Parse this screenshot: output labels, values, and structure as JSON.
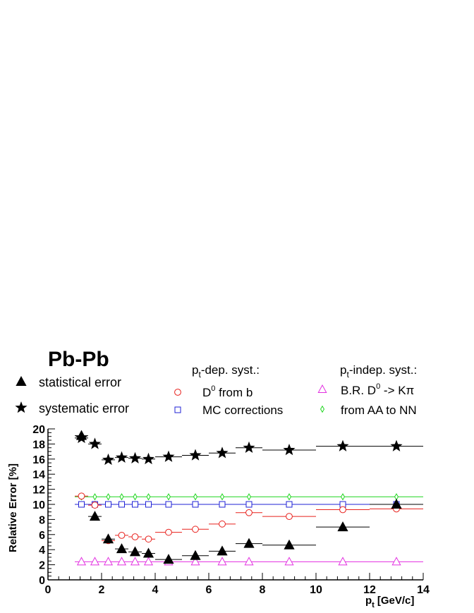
{
  "chart_data": {
    "type": "scatter",
    "title": "Pb-Pb",
    "xlabel": "p",
    "xlabel_sub": "t",
    "xlabel_unit": "[GeV/c]",
    "ylabel": "Relative Error [%]",
    "xlim": [
      0,
      14
    ],
    "ylim": [
      0,
      20
    ],
    "x_ticks": [
      "0",
      "2",
      "4",
      "6",
      "8",
      "10",
      "12",
      "14"
    ],
    "y_ticks": [
      "0",
      "2",
      "4",
      "6",
      "8",
      "10",
      "12",
      "14",
      "16",
      "18",
      "20"
    ],
    "grid": false,
    "legend_groups": {
      "dep_title": "p",
      "dep_title_sub": "t",
      "dep_title_rest": "-dep. syst.:",
      "indep_title": "p",
      "indep_title_sub": "t",
      "indep_title_rest": "-indep. syst.:"
    },
    "series": [
      {
        "name": "statistical error",
        "marker": "triangle-filled",
        "color": "#000000",
        "x": [
          1.25,
          1.75,
          2.25,
          2.75,
          3.25,
          3.75,
          4.5,
          5.5,
          6.5,
          7.5,
          9,
          11,
          13
        ],
        "xw": [
          0.25,
          0.25,
          0.25,
          0.25,
          0.25,
          0.25,
          0.5,
          0.5,
          0.5,
          0.5,
          1,
          1,
          1
        ],
        "y": [
          19.1,
          8.4,
          5.4,
          4.1,
          3.7,
          3.5,
          2.7,
          3.2,
          3.8,
          4.8,
          4.6,
          7.0,
          10.0
        ]
      },
      {
        "name": "systematic error",
        "marker": "star",
        "color": "#000000",
        "x": [
          1.25,
          1.75,
          2.25,
          2.75,
          3.25,
          3.75,
          4.5,
          5.5,
          6.5,
          7.5,
          9,
          11,
          13
        ],
        "xw": [
          0.25,
          0.25,
          0.25,
          0.25,
          0.25,
          0.25,
          0.5,
          0.5,
          0.5,
          0.5,
          1,
          1,
          1
        ],
        "y": [
          18.8,
          18.0,
          15.9,
          16.2,
          16.1,
          16.0,
          16.3,
          16.5,
          16.8,
          17.5,
          17.2,
          17.7,
          17.7
        ]
      },
      {
        "name": "D",
        "name_sup": "0",
        "name_rest": " from b",
        "group": "dep",
        "marker": "circle-open",
        "color": "#e8201c",
        "x": [
          1.25,
          1.75,
          2.25,
          2.75,
          3.25,
          3.75,
          4.5,
          5.5,
          6.5,
          7.5,
          9,
          11,
          13
        ],
        "xw": [
          0.25,
          0.25,
          0.25,
          0.25,
          0.25,
          0.25,
          0.5,
          0.5,
          0.5,
          0.5,
          1,
          1,
          1
        ],
        "y": [
          11.1,
          9.9,
          5.2,
          5.9,
          5.7,
          5.4,
          6.3,
          6.7,
          7.4,
          8.9,
          8.4,
          9.3,
          9.4
        ]
      },
      {
        "name": "MC corrections",
        "group": "dep",
        "marker": "square-open",
        "color": "#1f22d6",
        "x": [
          1.25,
          1.75,
          2.25,
          2.75,
          3.25,
          3.75,
          4.5,
          5.5,
          6.5,
          7.5,
          9,
          11,
          13
        ],
        "xw": [
          0.25,
          0.25,
          0.25,
          0.25,
          0.25,
          0.25,
          0.5,
          0.5,
          0.5,
          0.5,
          1,
          1,
          1
        ],
        "y": [
          10.0,
          10.0,
          10.0,
          10.0,
          10.0,
          10.0,
          10.0,
          10.0,
          10.0,
          10.0,
          10.0,
          10.0,
          10.0
        ]
      },
      {
        "name": "B.R. D",
        "name_sup": "0",
        "name_rest": " -> Kπ",
        "group": "indep",
        "marker": "triangle-open",
        "color": "#e22de0",
        "x": [
          1.25,
          1.75,
          2.25,
          2.75,
          3.25,
          3.75,
          4.5,
          5.5,
          6.5,
          7.5,
          9,
          11,
          13
        ],
        "xw": [
          0.25,
          0.25,
          0.25,
          0.25,
          0.25,
          0.25,
          0.5,
          0.5,
          0.5,
          0.5,
          1,
          1,
          1
        ],
        "y": [
          2.4,
          2.4,
          2.4,
          2.4,
          2.4,
          2.4,
          2.4,
          2.4,
          2.4,
          2.4,
          2.4,
          2.4,
          2.4
        ]
      },
      {
        "name": "from AA to NN",
        "group": "indep",
        "marker": "diamond-open",
        "color": "#1fd61f",
        "x": [
          1.25,
          1.75,
          2.25,
          2.75,
          3.25,
          3.75,
          4.5,
          5.5,
          6.5,
          7.5,
          9,
          11,
          13
        ],
        "xw": [
          0.25,
          0.25,
          0.25,
          0.25,
          0.25,
          0.25,
          0.5,
          0.5,
          0.5,
          0.5,
          1,
          1,
          1
        ],
        "y": [
          11.0,
          11.0,
          11.0,
          11.0,
          11.0,
          11.0,
          11.0,
          11.0,
          11.0,
          11.0,
          11.0,
          11.0,
          11.0
        ]
      }
    ]
  }
}
